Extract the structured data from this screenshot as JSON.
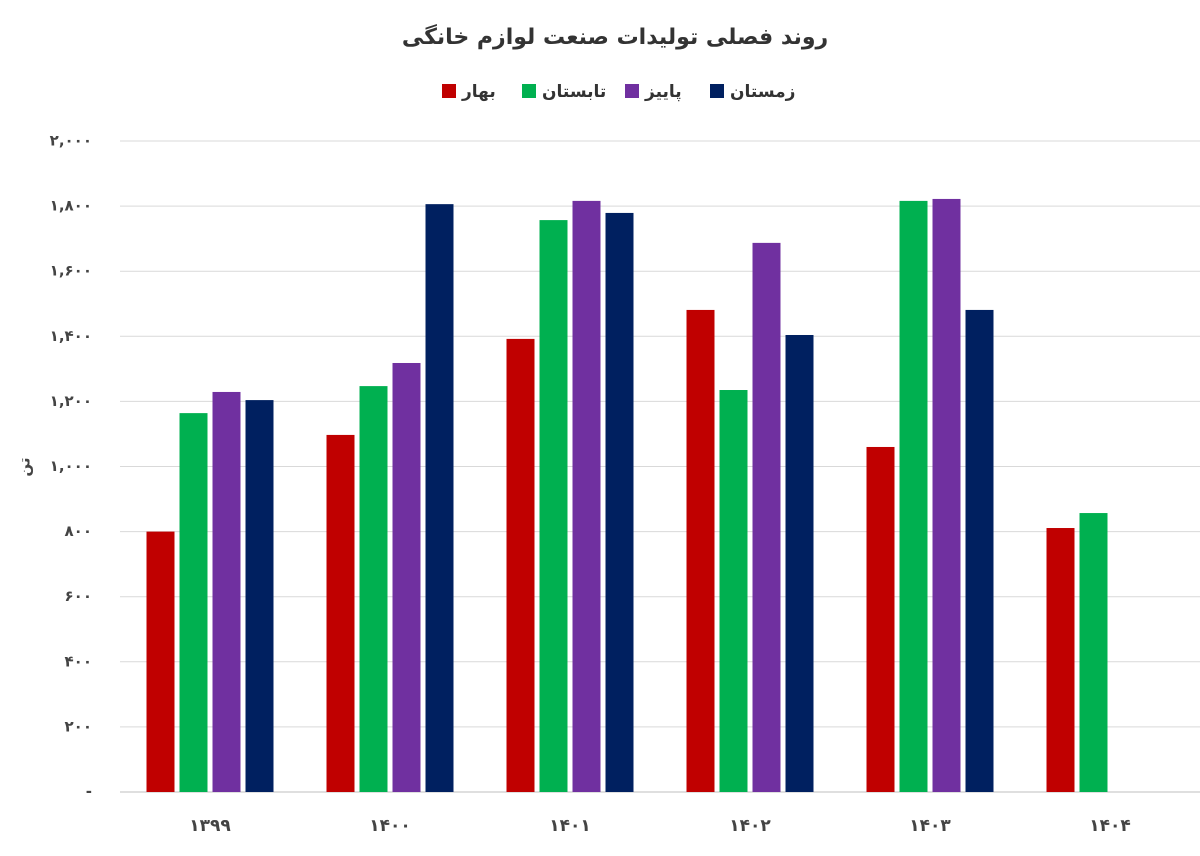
{
  "chart_data": {
    "type": "bar",
    "title": "روند فصلی تولیدات صنعت لوازم خانگی",
    "y_label": "تن",
    "categories": [
      "۱۳۹۹",
      "۱۴۰۰",
      "۱۴۰۱",
      "۱۴۰۲",
      "۱۴۰۳",
      "۱۴۰۴"
    ],
    "series": [
      {
        "name": "بهار",
        "color": "#c00000",
        "values": [
          800,
          1097,
          1392,
          1481,
          1060,
          811
        ]
      },
      {
        "name": "تابستان",
        "color": "#00b050",
        "values": [
          1164,
          1247,
          1757,
          1235,
          1816,
          857
        ]
      },
      {
        "name": "پاییز",
        "color": "#7030a0",
        "values": [
          1229,
          1318,
          1816,
          1687,
          1822,
          null
        ]
      },
      {
        "name": "زمستان",
        "color": "#002060",
        "values": [
          1204,
          1806,
          1779,
          1404,
          1481,
          null
        ]
      }
    ],
    "ylim": [
      0,
      2000
    ],
    "yticks": [
      {
        "value": 0,
        "label": "-"
      },
      {
        "value": 200,
        "label": "۲۰۰"
      },
      {
        "value": 400,
        "label": "۴۰۰"
      },
      {
        "value": 600,
        "label": "۶۰۰"
      },
      {
        "value": 800,
        "label": "۸۰۰"
      },
      {
        "value": 1000,
        "label": "۱,۰۰۰"
      },
      {
        "value": 1200,
        "label": "۱,۲۰۰"
      },
      {
        "value": 1400,
        "label": "۱,۴۰۰"
      },
      {
        "value": 1600,
        "label": "۱,۶۰۰"
      },
      {
        "value": 1800,
        "label": "۱,۸۰۰"
      },
      {
        "value": 2000,
        "label": "۲,۰۰۰"
      }
    ],
    "grid": true
  }
}
